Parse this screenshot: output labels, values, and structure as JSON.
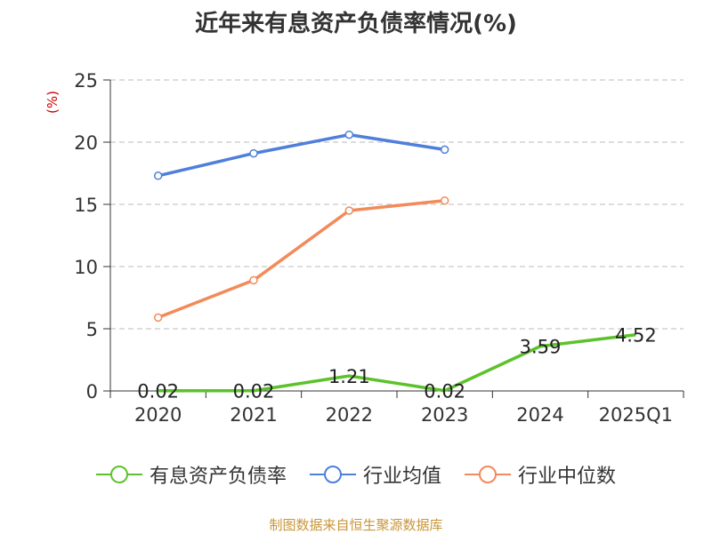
{
  "chart_data": {
    "type": "line",
    "title": "近年来有息资产负债率情况(%)",
    "ylabel": "(%)",
    "categories": [
      "2020",
      "2021",
      "2022",
      "2023",
      "2024",
      "2025Q1"
    ],
    "ylim": [
      0,
      25
    ],
    "yticks": [
      0,
      5,
      10,
      15,
      20,
      25
    ],
    "grid": true,
    "legend_position": "bottom",
    "series": [
      {
        "name": "有息资产负债率",
        "color": "#5cc22b",
        "values": [
          0.02,
          0.02,
          1.21,
          0.02,
          3.59,
          4.52
        ],
        "labels": [
          "0.02",
          "0.02",
          "1.21",
          "0.02",
          "3.59",
          "4.52"
        ]
      },
      {
        "name": "行业均值",
        "color": "#4f7fdb",
        "values": [
          17.3,
          19.1,
          20.6,
          19.4,
          null,
          null
        ]
      },
      {
        "name": "行业中位数",
        "color": "#f38a5a",
        "values": [
          5.9,
          8.9,
          14.5,
          15.3,
          null,
          null
        ]
      }
    ]
  },
  "source": "制图数据来自恒生聚源数据库"
}
